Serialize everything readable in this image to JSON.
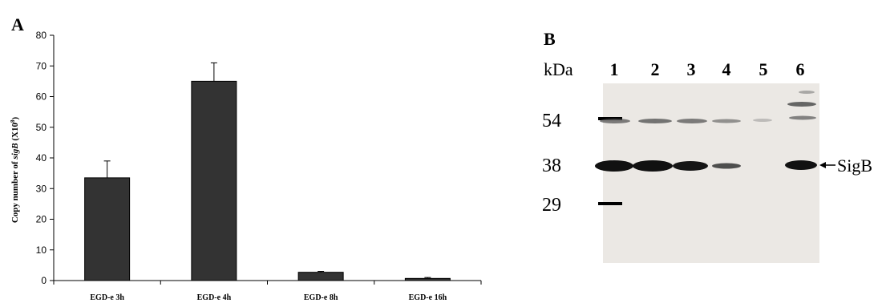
{
  "panel_a": {
    "label": "A",
    "ylabel_prefix": "Copy number of ",
    "ylabel_italic": "sigB",
    "ylabel_suffix": " (X10",
    "ylabel_sup": "8",
    "ylabel_close": ")"
  },
  "panel_b": {
    "label": "B",
    "kda_label": "kDa",
    "lanes": [
      "1",
      "2",
      "3",
      "4",
      "5",
      "6"
    ],
    "markers": [
      "54",
      "38",
      "29"
    ],
    "band_label": "SigB"
  },
  "chart_data": {
    "type": "bar",
    "categories": [
      "EGD-e 3h",
      "EGD-e 4h",
      "EGD-e 8h",
      "EGD-e 16h"
    ],
    "values": [
      33.5,
      65,
      2.7,
      0.7
    ],
    "errors": [
      5.5,
      6,
      0.3,
      0.3
    ],
    "ylabel": "Copy number of sigB (X10^8)",
    "ylim": [
      0,
      80
    ],
    "yticks": [
      0,
      10,
      20,
      30,
      40,
      50,
      60,
      70,
      80
    ],
    "bar_color": "#333333"
  }
}
